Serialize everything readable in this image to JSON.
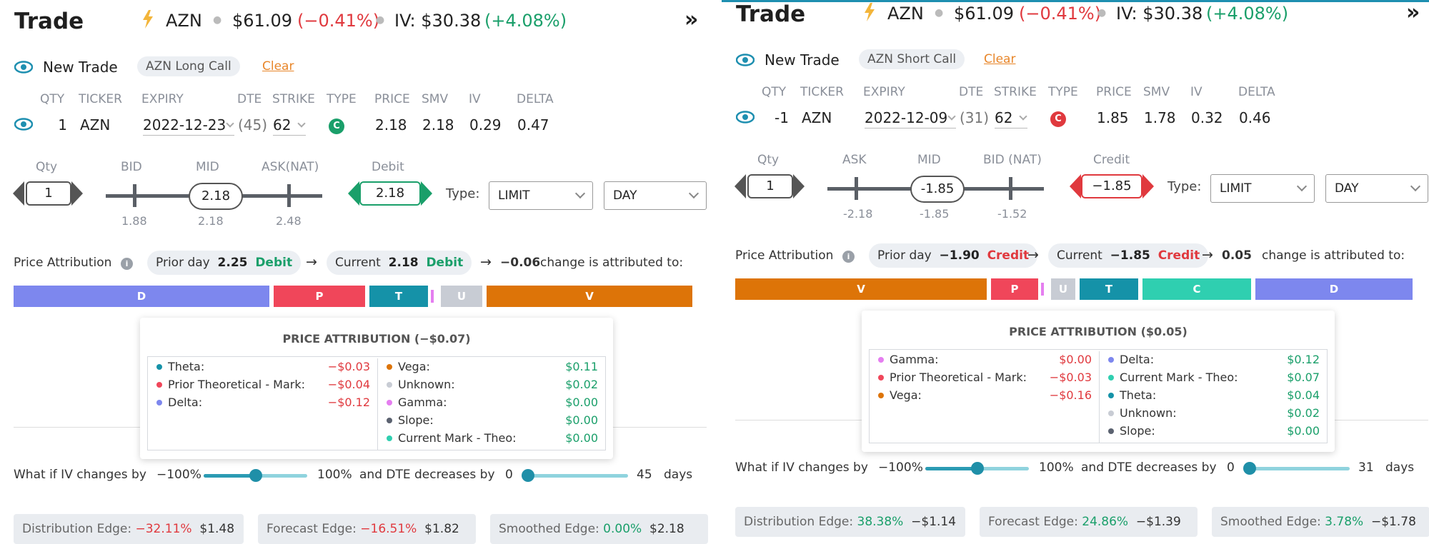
{
  "panels": [
    {
      "title": "Trade",
      "ticker": "AZN",
      "price": "$61.09",
      "change": "(−0.41%)",
      "iv_label": "IV: $30.38",
      "iv_change": "(+4.08%)",
      "new_trade": "New Trade",
      "strategy": "AZN Long Call",
      "clear": "Clear",
      "headers": {
        "qty": "QTY",
        "ticker": "TICKER",
        "expiry": "EXPIRY",
        "dte": "DTE",
        "strike": "STRIKE",
        "type": "TYPE",
        "price": "PRICE",
        "smv": "SMV",
        "iv": "IV",
        "delta": "DELTA"
      },
      "leg": {
        "qty": "1",
        "ticker": "AZN",
        "expiry": "2022-12-23",
        "dte": "(45)",
        "strike": "62",
        "type": "C",
        "price": "2.18",
        "smv": "2.18",
        "iv": "0.29",
        "delta": "0.47",
        "type_color": "#1a9f6a"
      },
      "order": {
        "qty_label": "Qty",
        "qty": "1",
        "left_label": "BID",
        "mid_label": "MID",
        "right_label": "ASK(NAT)",
        "left_val": "1.88",
        "mid_val": "2.18",
        "right_val": "2.48",
        "mid_pill": "2.18",
        "side_label": "Debit",
        "side_val": "2.18",
        "side_color": "#1a9f6a",
        "type_label": "Type:",
        "order_type": "LIMIT",
        "tif": "DAY"
      },
      "attr": {
        "label": "Price Attribution",
        "prior": "Prior day",
        "prior_val": "2.25",
        "prior_side": "Debit",
        "current": "Current",
        "current_val": "2.18",
        "current_side": "Debit",
        "side_color": "#1a9f6a",
        "change": "−0.06",
        "change_text": "change is attributed to:"
      },
      "segments": [
        {
          "label": "D",
          "color": "#7d87ee",
          "w": 358
        },
        {
          "label": "P",
          "color": "#f0465a",
          "w": 128
        },
        {
          "label": "T",
          "color": "#1592a8",
          "w": 82
        },
        {
          "label": "",
          "color": "#ffffff",
          "w": 6
        },
        {
          "label": "U",
          "color": "#c8ccd4",
          "w": 58
        },
        {
          "label": "V",
          "color": "#dd7408",
          "w": 288
        }
      ],
      "popup": {
        "title": "PRICE ATTRIBUTION (−$0.07)",
        "left": [
          {
            "name": "Theta:",
            "value": "−$0.03",
            "color": "#1592a8",
            "vcolor": "#e0393e"
          },
          {
            "name": "Prior Theoretical - Mark:",
            "value": "−$0.04",
            "color": "#f0465a",
            "vcolor": "#e0393e"
          },
          {
            "name": "Delta:",
            "value": "−$0.12",
            "color": "#7d87ee",
            "vcolor": "#e0393e"
          }
        ],
        "right": [
          {
            "name": "Vega:",
            "value": "$0.11",
            "color": "#dd7408",
            "vcolor": "#1a9f6a"
          },
          {
            "name": "Unknown:",
            "value": "$0.02",
            "color": "#c8ccd4",
            "vcolor": "#1a9f6a"
          },
          {
            "name": "Gamma:",
            "value": "$0.00",
            "color": "#e57ef0",
            "vcolor": "#1a9f6a"
          },
          {
            "name": "Slope:",
            "value": "$0.00",
            "color": "#5b6270",
            "vcolor": "#1a9f6a"
          },
          {
            "name": "Current Mark - Theo:",
            "value": "$0.00",
            "color": "#2fcfb0",
            "vcolor": "#1a9f6a"
          }
        ]
      },
      "whatif": {
        "iv_text": "What if IV changes by",
        "iv_min": "−100%",
        "iv_max": "100%",
        "dte_text": "and DTE decreases by",
        "dte_min": "0",
        "dte_max": "45",
        "days": "days"
      },
      "edges": [
        {
          "label": "Distribution Edge:",
          "pct": "−32.11%",
          "val": "$1.48",
          "pcolor": "#e0393e"
        },
        {
          "label": "Forecast Edge:",
          "pct": "−16.51%",
          "val": "$1.82",
          "pcolor": "#e0393e"
        },
        {
          "label": "Smoothed Edge:",
          "pct": "0.00%",
          "val": "$2.18",
          "pcolor": "#1a9f6a"
        }
      ]
    },
    {
      "title": "Trade",
      "ticker": "AZN",
      "price": "$61.09",
      "change": "(−0.41%)",
      "iv_label": "IV: $30.38",
      "iv_change": "(+4.08%)",
      "new_trade": "New Trade",
      "strategy": "AZN Short Call",
      "clear": "Clear",
      "headers": {
        "qty": "QTY",
        "ticker": "TICKER",
        "expiry": "EXPIRY",
        "dte": "DTE",
        "strike": "STRIKE",
        "type": "TYPE",
        "price": "PRICE",
        "smv": "SMV",
        "iv": "IV",
        "delta": "DELTA"
      },
      "leg": {
        "qty": "-1",
        "ticker": "AZN",
        "expiry": "2022-12-09",
        "dte": "(31)",
        "strike": "62",
        "type": "C",
        "price": "1.85",
        "smv": "1.78",
        "iv": "0.32",
        "delta": "0.46",
        "type_color": "#e0393e"
      },
      "order": {
        "qty_label": "Qty",
        "qty": "1",
        "left_label": "ASK",
        "mid_label": "MID",
        "right_label": "BID (NAT)",
        "left_val": "-2.18",
        "mid_val": "-1.85",
        "right_val": "-1.52",
        "mid_pill": "-1.85",
        "side_label": "Credit",
        "side_val": "−1.85",
        "side_color": "#e0393e",
        "type_label": "Type:",
        "order_type": "LIMIT",
        "tif": "DAY"
      },
      "attr": {
        "label": "Price Attribution",
        "prior": "Prior day",
        "prior_val": "−1.90",
        "prior_side": "Credit",
        "current": "Current",
        "current_val": "−1.85",
        "current_side": "Credit",
        "side_color": "#e0393e",
        "change": "0.05",
        "change_text": "change is attributed to:"
      },
      "segments": [
        {
          "label": "V",
          "color": "#dd7408",
          "w": 352
        },
        {
          "label": "P",
          "color": "#f0465a",
          "w": 66
        },
        {
          "label": "",
          "color": "#ffffff",
          "w": 6
        },
        {
          "label": "U",
          "color": "#c8ccd4",
          "w": 34
        },
        {
          "label": "T",
          "color": "#1592a8",
          "w": 82
        },
        {
          "label": "C",
          "color": "#2fcfb0",
          "w": 152
        },
        {
          "label": "D",
          "color": "#7d87ee",
          "w": 220
        }
      ],
      "popup": {
        "title": "PRICE ATTRIBUTION ($0.05)",
        "left": [
          {
            "name": "Gamma:",
            "value": "$0.00",
            "color": "#e57ef0",
            "vcolor": "#e0393e"
          },
          {
            "name": "Prior Theoretical - Mark:",
            "value": "−$0.03",
            "color": "#f0465a",
            "vcolor": "#e0393e"
          },
          {
            "name": "Vega:",
            "value": "−$0.16",
            "color": "#dd7408",
            "vcolor": "#e0393e"
          }
        ],
        "right": [
          {
            "name": "Delta:",
            "value": "$0.12",
            "color": "#7d87ee",
            "vcolor": "#1a9f6a"
          },
          {
            "name": "Current Mark - Theo:",
            "value": "$0.07",
            "color": "#2fcfb0",
            "vcolor": "#1a9f6a"
          },
          {
            "name": "Theta:",
            "value": "$0.04",
            "color": "#1592a8",
            "vcolor": "#1a9f6a"
          },
          {
            "name": "Unknown:",
            "value": "$0.02",
            "color": "#c8ccd4",
            "vcolor": "#1a9f6a"
          },
          {
            "name": "Slope:",
            "value": "$0.00",
            "color": "#5b6270",
            "vcolor": "#1a9f6a"
          }
        ]
      },
      "whatif": {
        "iv_text": "What if IV changes by",
        "iv_min": "−100%",
        "iv_max": "100%",
        "dte_text": "and DTE decreases by",
        "dte_min": "0",
        "dte_max": "31",
        "days": "days"
      },
      "edges": [
        {
          "label": "Distribution Edge:",
          "pct": "38.38%",
          "val": "−$1.14",
          "pcolor": "#1a9f6a"
        },
        {
          "label": "Forecast Edge:",
          "pct": "24.86%",
          "val": "−$1.39",
          "pcolor": "#1a9f6a"
        },
        {
          "label": "Smoothed Edge:",
          "pct": "3.78%",
          "val": "−$1.78",
          "pcolor": "#1a9f6a"
        }
      ]
    }
  ]
}
